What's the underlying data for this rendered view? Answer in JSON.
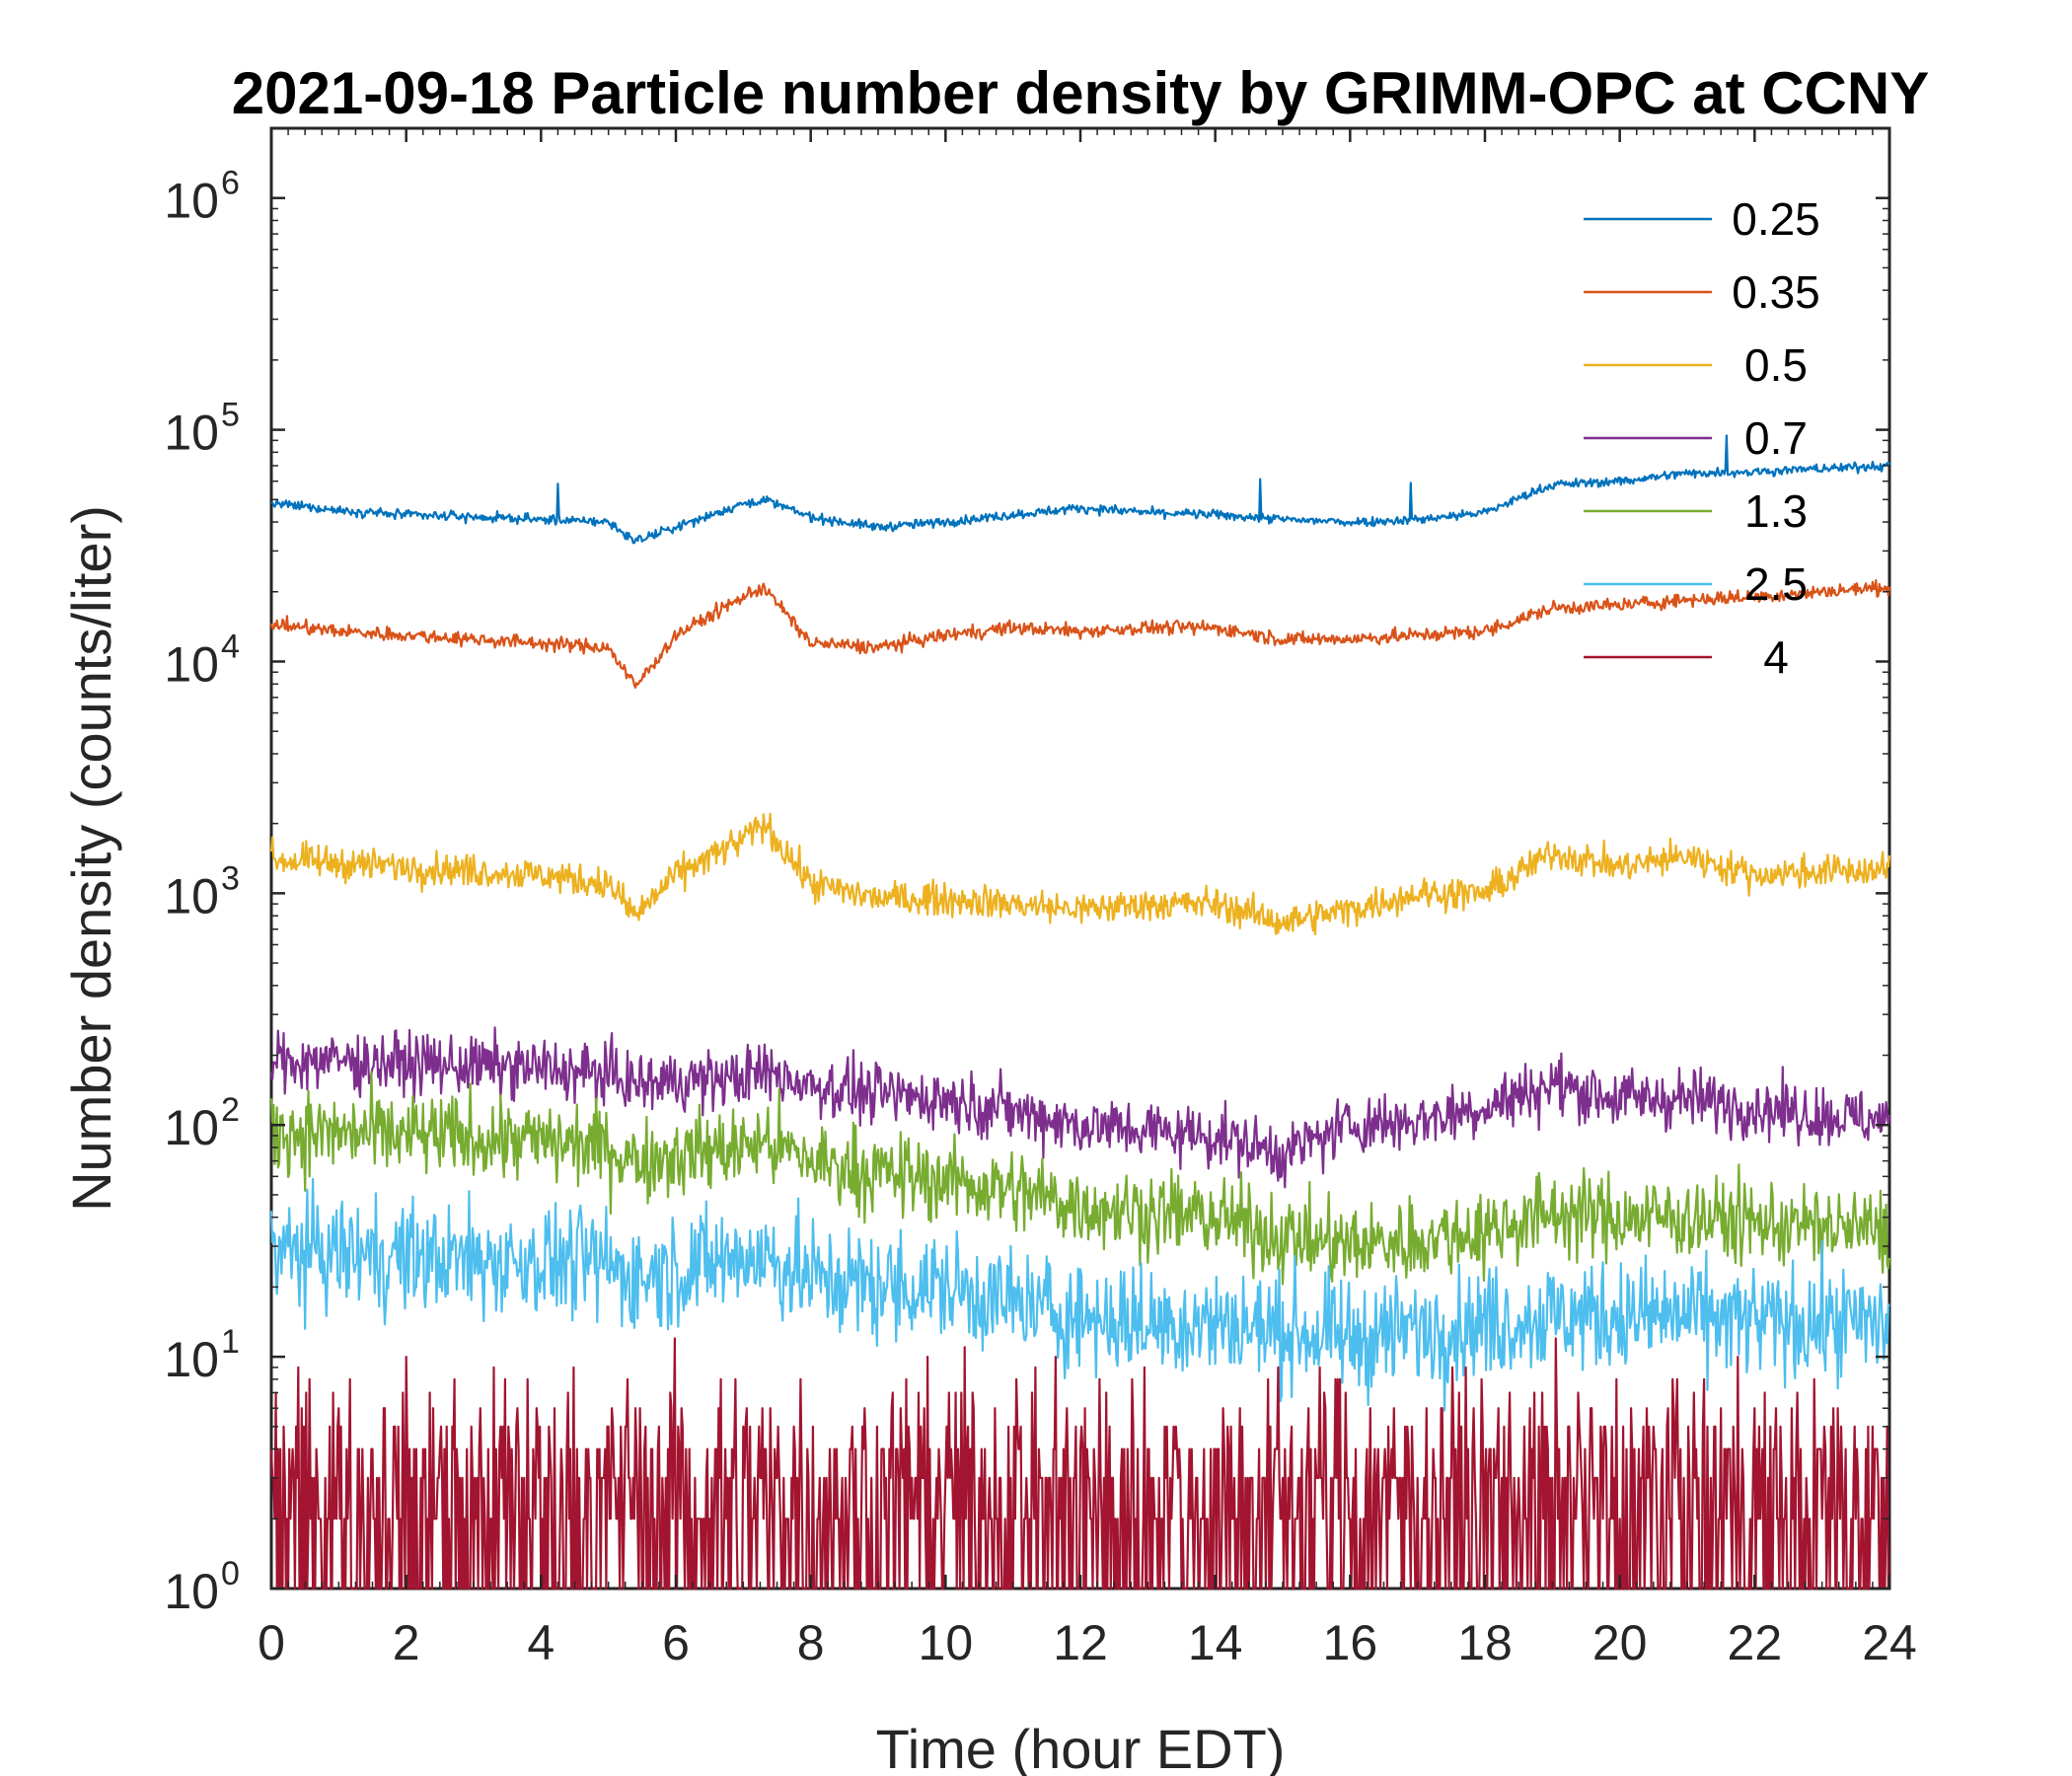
{
  "chart_data": {
    "type": "line",
    "title": "2021-09-18 Particle number density by GRIMM-OPC at CCNY",
    "xlabel": "Time (hour EDT)",
    "ylabel": "Number density (counts/liter)",
    "xlim": [
      0,
      24
    ],
    "ylim": [
      1,
      2000000
    ],
    "yscale": "log",
    "x_ticks": [
      "0",
      "2",
      "4",
      "6",
      "8",
      "10",
      "12",
      "14",
      "16",
      "18",
      "20",
      "22",
      "24"
    ],
    "y_ticks": [
      {
        "base": "10",
        "exp": "0",
        "value": 1
      },
      {
        "base": "10",
        "exp": "1",
        "value": 10
      },
      {
        "base": "10",
        "exp": "2",
        "value": 100
      },
      {
        "base": "10",
        "exp": "3",
        "value": 1000
      },
      {
        "base": "10",
        "exp": "4",
        "value": 10000
      },
      {
        "base": "10",
        "exp": "5",
        "value": 100000
      },
      {
        "base": "10",
        "exp": "6",
        "value": 1000000
      }
    ],
    "legend_position": "top-right",
    "x": [
      0,
      1,
      2,
      3,
      4,
      5,
      5.4,
      6,
      7,
      7.3,
      8,
      9,
      10,
      11,
      12,
      13,
      14,
      15,
      16,
      17,
      18,
      19,
      20,
      21,
      22,
      23,
      24
    ],
    "series": [
      {
        "name": "0.25",
        "color": "#0072BD",
        "noise": 0.02,
        "values": [
          48000,
          45000,
          43000,
          42000,
          41000,
          40000,
          33000,
          38000,
          48000,
          50000,
          42000,
          38000,
          40000,
          43000,
          46000,
          44000,
          43000,
          41000,
          40000,
          41000,
          44000,
          58000,
          60000,
          65000,
          66000,
          68000,
          70000
        ]
      },
      {
        "name": "0.35",
        "color": "#D95319",
        "noise": 0.03,
        "values": [
          14500,
          13500,
          13000,
          12500,
          12000,
          11500,
          7800,
          13000,
          19000,
          21000,
          12000,
          11500,
          13000,
          14000,
          13500,
          14000,
          14000,
          12500,
          12500,
          13000,
          13500,
          17000,
          17500,
          18500,
          19000,
          20000,
          21000
        ]
      },
      {
        "name": "0.5",
        "color": "#EDB120",
        "noise": 0.07,
        "values": [
          1400,
          1350,
          1300,
          1250,
          1200,
          1100,
          800,
          1200,
          1700,
          2000,
          1100,
          950,
          950,
          900,
          850,
          900,
          900,
          750,
          850,
          1000,
          1000,
          1500,
          1300,
          1450,
          1200,
          1250,
          1250
        ]
      },
      {
        "name": "0.7",
        "color": "#7E2F8E",
        "noise": 0.13,
        "values": [
          190,
          190,
          185,
          180,
          175,
          165,
          150,
          155,
          160,
          170,
          150,
          135,
          130,
          115,
          100,
          95,
          90,
          75,
          100,
          105,
          120,
          150,
          130,
          130,
          120,
          110,
          105
        ]
      },
      {
        "name": "1.3",
        "color": "#77AC30",
        "noise": 0.18,
        "values": [
          95,
          92,
          90,
          88,
          85,
          80,
          70,
          75,
          80,
          85,
          70,
          62,
          58,
          52,
          45,
          42,
          40,
          33,
          30,
          32,
          35,
          42,
          40,
          40,
          38,
          36,
          35
        ]
      },
      {
        "name": "2.5",
        "color": "#4DBEEE",
        "noise": 0.24,
        "values": [
          28,
          28,
          27,
          26,
          26,
          25,
          22,
          24,
          27,
          27,
          22,
          20,
          20,
          17,
          15,
          14,
          14,
          13,
          12,
          13,
          14,
          15,
          15,
          15,
          14,
          14,
          14
        ]
      },
      {
        "name": "4",
        "color": "#A2142F",
        "noise": 0.45,
        "values": [
          3,
          3,
          3,
          3,
          3,
          3,
          3,
          3,
          3,
          3,
          3,
          3,
          3,
          3,
          3,
          3,
          3,
          3,
          3,
          3,
          3,
          3,
          3,
          3,
          3,
          3,
          3
        ]
      }
    ]
  }
}
